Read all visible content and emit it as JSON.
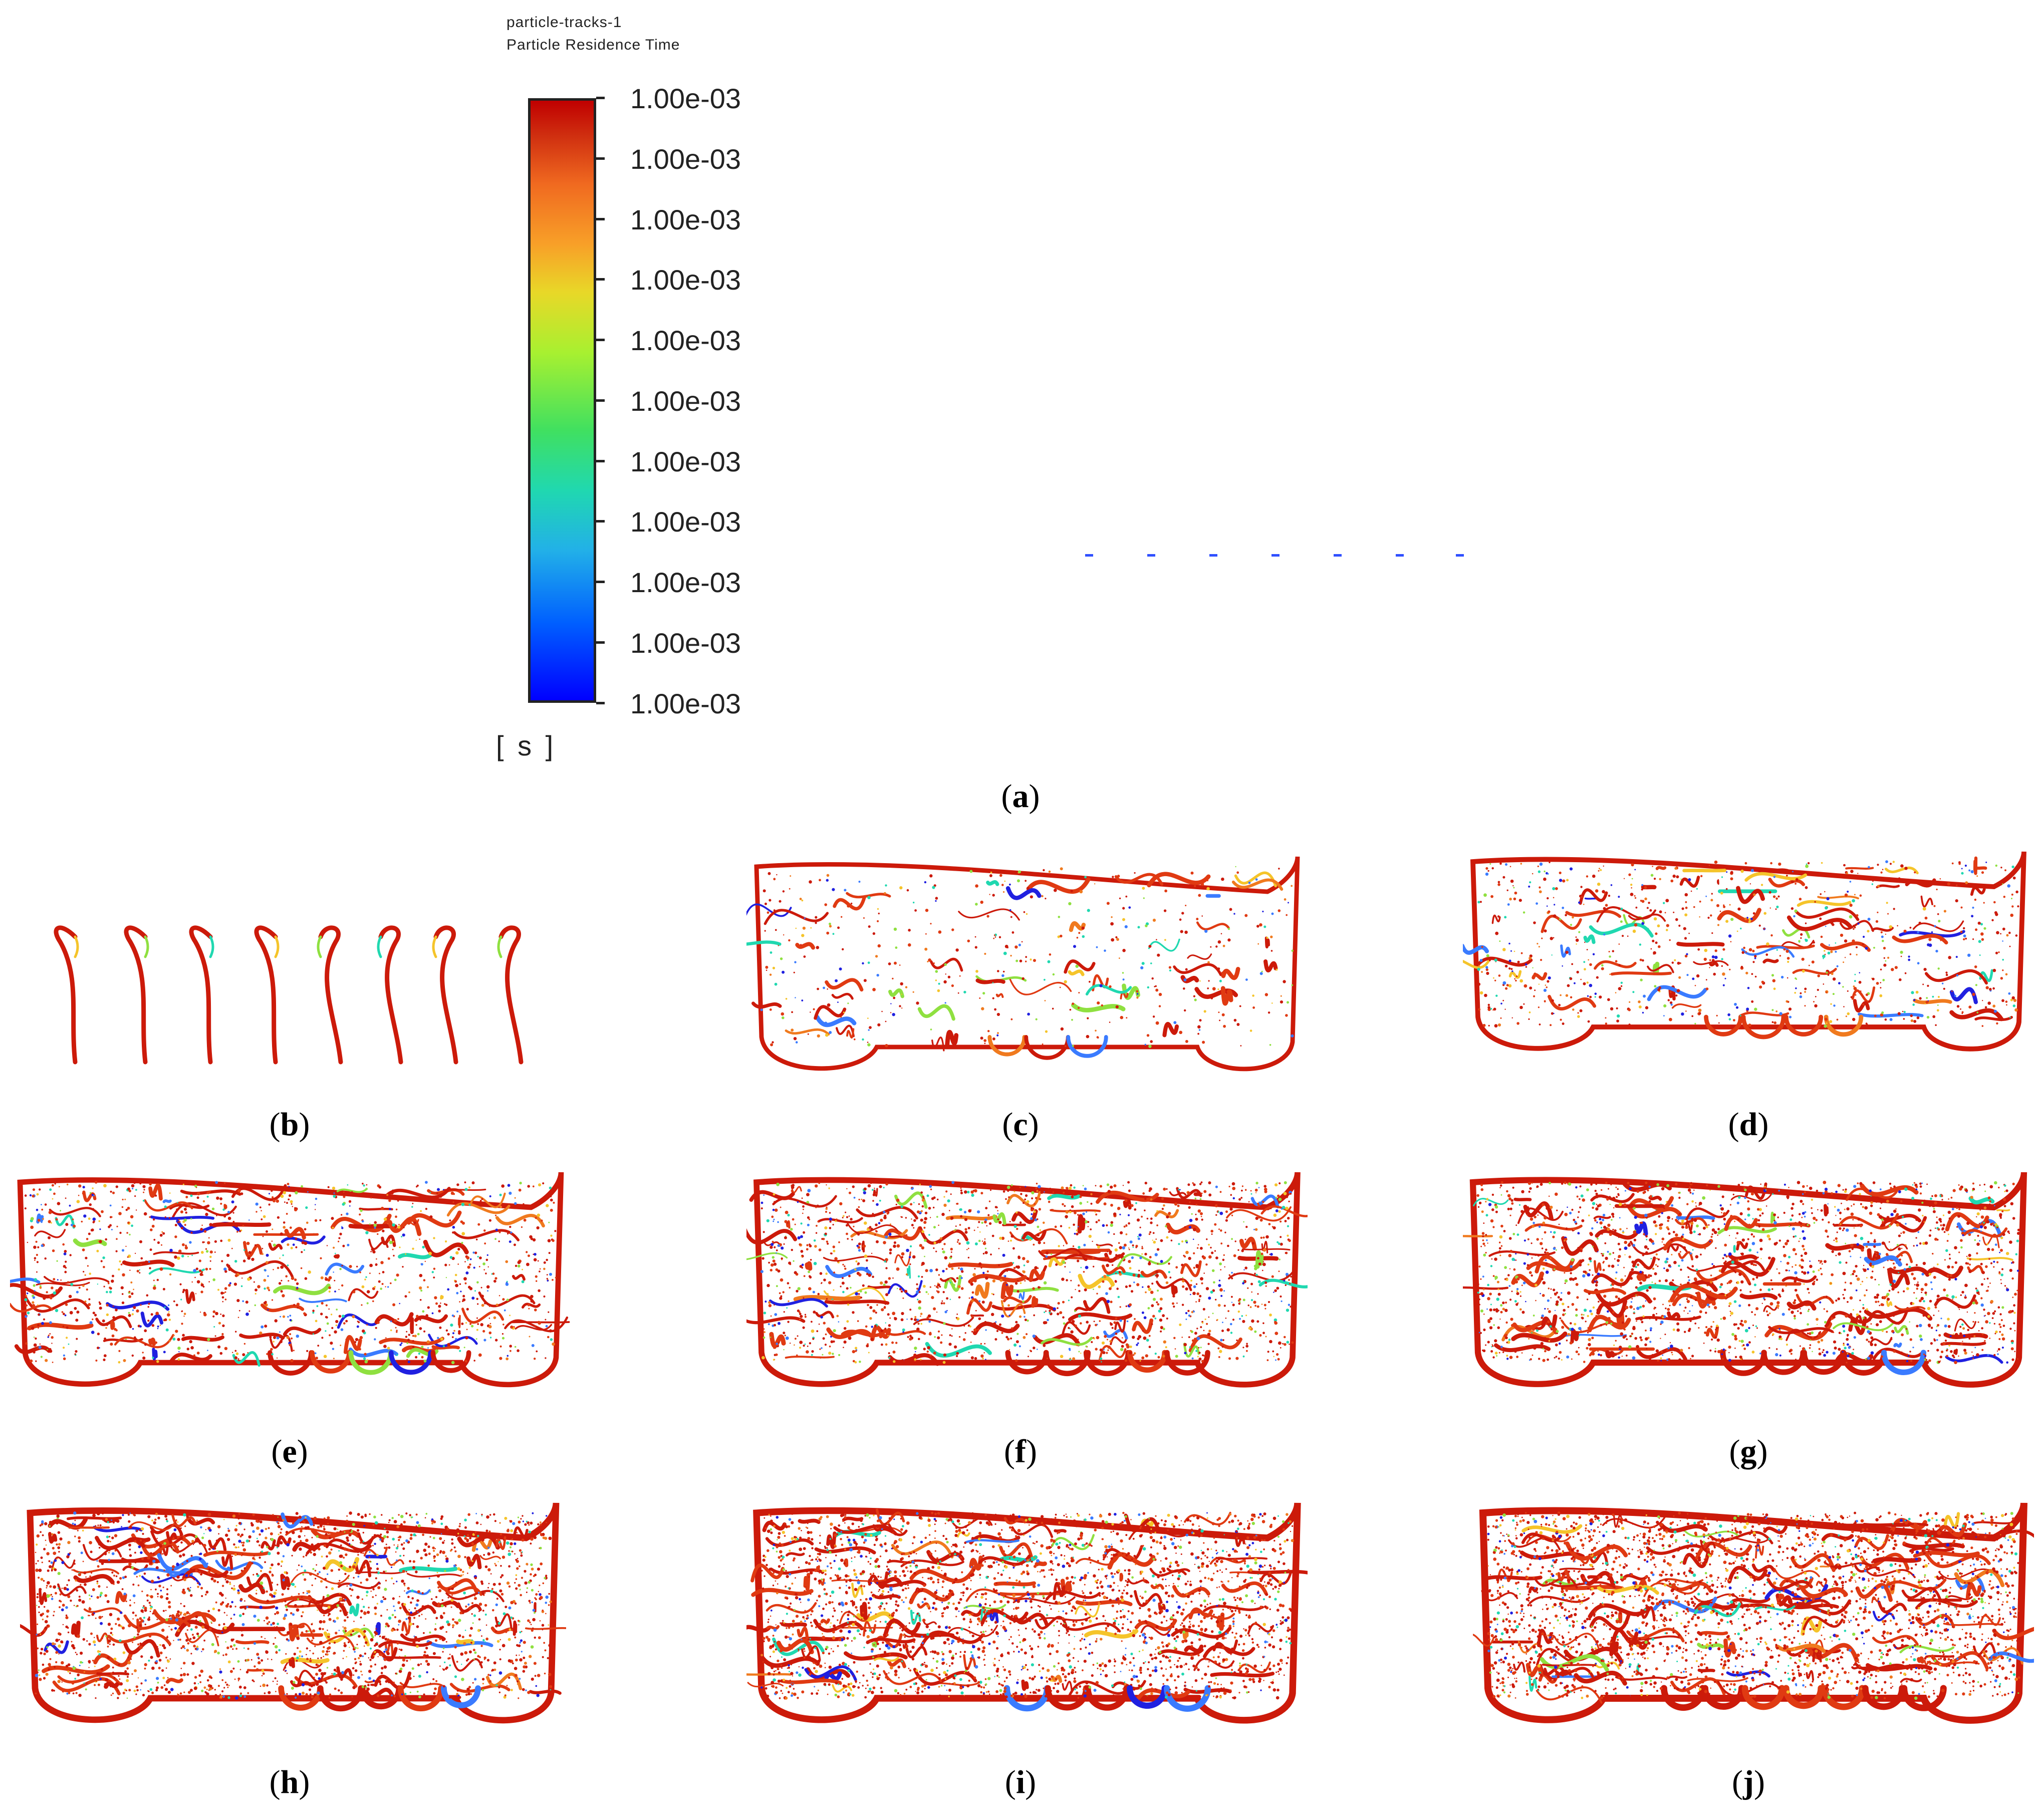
{
  "legend": {
    "title": "particle-tracks-1",
    "subtitle": "Particle Residence Time",
    "unit": "[ s ]",
    "tick_labels": [
      "1.00e-03",
      "1.00e-03",
      "1.00e-03",
      "1.00e-03",
      "1.00e-03",
      "1.00e-03",
      "1.00e-03",
      "1.00e-03",
      "1.00e-03",
      "1.00e-03",
      "1.00e-03"
    ],
    "colors": {
      "min": "#0000ff",
      "max": "#c00000"
    }
  },
  "panels": {
    "a": "a",
    "b": "b",
    "c": "c",
    "d": "d",
    "e": "e",
    "f": "f",
    "g": "g",
    "h": "h",
    "i": "i",
    "j": "j"
  },
  "palette": [
    "#cc1a0a",
    "#e03a12",
    "#f07a1e",
    "#f5c42a",
    "#8fe040",
    "#20d8b0",
    "#3a7bff",
    "#2020e0"
  ],
  "densities": {
    "b": 0.0,
    "c": 0.15,
    "d": 0.3,
    "e": 0.45,
    "f": 0.6,
    "g": 0.7,
    "h": 0.8,
    "i": 0.9,
    "j": 1.0
  }
}
